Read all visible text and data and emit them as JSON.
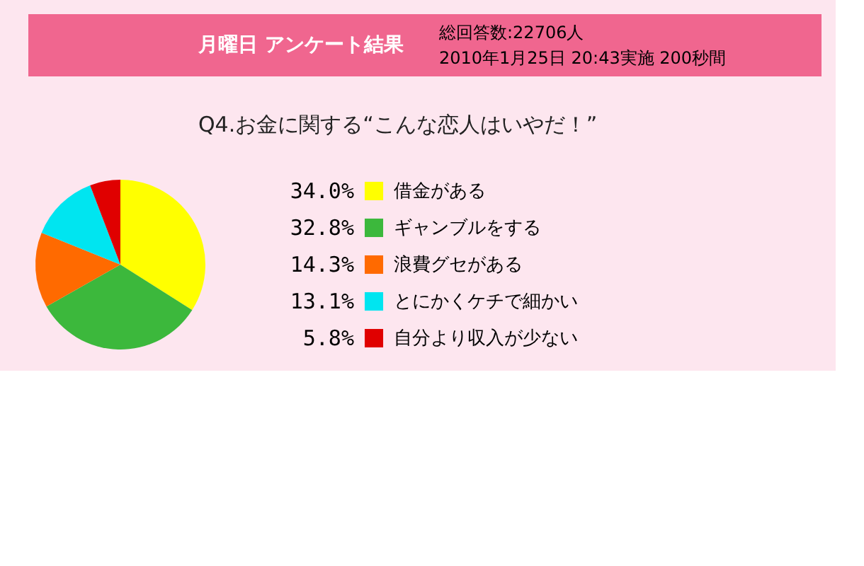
{
  "chart_data": {
    "type": "pie",
    "title": "月曜日 アンケート結果",
    "subtitle": "Q4.お金に関する“こんな恋人はいやだ！”",
    "annotations": [
      "総回答数:22706人",
      "2010年1月25日 20:43実施 200秒間"
    ],
    "categories": [
      "借金がある",
      "ギャンブルをする",
      "浪費グセがある",
      "とにかくケチで細かい",
      "自分より収入が少ない"
    ],
    "values": [
      34.0,
      32.8,
      14.3,
      13.1,
      5.8
    ],
    "value_labels": [
      "34.0%",
      "32.8%",
      "14.3%",
      "13.1%",
      "5.8%"
    ],
    "colors": [
      "#ffff00",
      "#3cb83c",
      "#ff6a00",
      "#00e5f0",
      "#e00000"
    ],
    "legend": "right"
  }
}
